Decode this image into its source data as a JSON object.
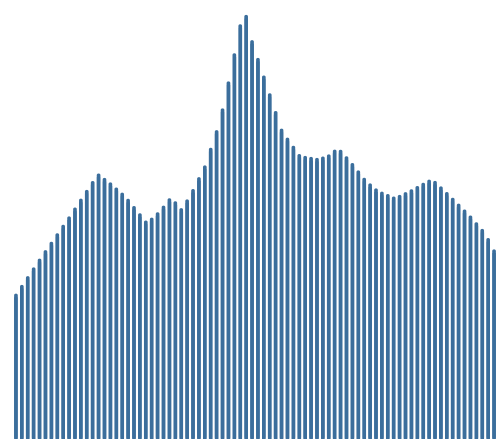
{
  "graphic": {
    "fill_color": "#3b6e9c",
    "background_color": "#ffffff",
    "stripe_count": 82
  }
}
